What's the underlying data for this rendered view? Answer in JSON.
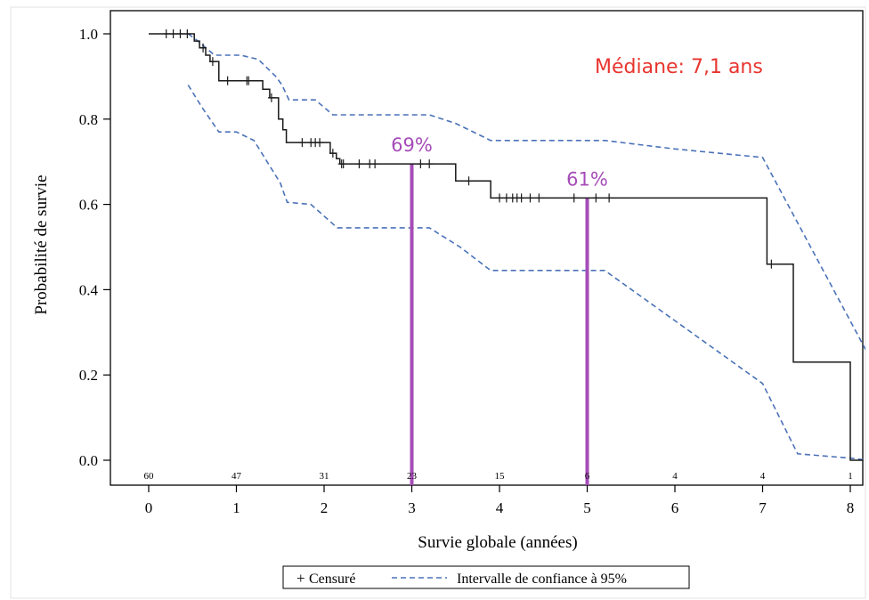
{
  "colors": {
    "survival": "#1a1a1a",
    "ci": "#4a72b8",
    "marker": "#a64cb8",
    "median_text": "#e8352f",
    "axis": "#000000"
  },
  "chart_data": {
    "type": "line",
    "xlabel": "Survie globale (années)",
    "ylabel": "Probabilité de survie",
    "xlim": [
      0,
      8
    ],
    "ylim": [
      0.0,
      1.0
    ],
    "x_ticks": [
      "0",
      "1",
      "2",
      "3",
      "4",
      "5",
      "6",
      "7",
      "8"
    ],
    "y_ticks": [
      "0.0",
      "0.2",
      "0.4",
      "0.6",
      "0.8",
      "1.0"
    ],
    "legend_position": "bottom",
    "legend": {
      "censored_symbol": "+",
      "censored_label": "Censuré",
      "ci_label": "Intervalle de confiance à 95%"
    },
    "annotation": "Médiane: 7,1 ans",
    "at_risk": [
      {
        "x": 0,
        "n": "60"
      },
      {
        "x": 1,
        "n": "47"
      },
      {
        "x": 2,
        "n": "31"
      },
      {
        "x": 3,
        "n": "23"
      },
      {
        "x": 4,
        "n": "15"
      },
      {
        "x": 5,
        "n": "6"
      },
      {
        "x": 6,
        "n": "4"
      },
      {
        "x": 7,
        "n": "4"
      },
      {
        "x": 8,
        "n": "1"
      }
    ],
    "markers": [
      {
        "x": 3,
        "y": 0.695,
        "label": "69%"
      },
      {
        "x": 5,
        "y": 0.615,
        "label": "61%"
      }
    ],
    "series": [
      {
        "kind": "survival",
        "steps": [
          [
            0,
            1.0
          ],
          [
            0.52,
            1.0
          ],
          [
            0.52,
            0.983
          ],
          [
            0.58,
            0.983
          ],
          [
            0.58,
            0.967
          ],
          [
            0.65,
            0.967
          ],
          [
            0.65,
            0.95
          ],
          [
            0.7,
            0.95
          ],
          [
            0.7,
            0.935
          ],
          [
            0.8,
            0.935
          ],
          [
            0.8,
            0.89
          ],
          [
            1.3,
            0.89
          ],
          [
            1.3,
            0.87
          ],
          [
            1.38,
            0.87
          ],
          [
            1.38,
            0.85
          ],
          [
            1.48,
            0.85
          ],
          [
            1.48,
            0.8
          ],
          [
            1.53,
            0.8
          ],
          [
            1.53,
            0.775
          ],
          [
            1.57,
            0.775
          ],
          [
            1.57,
            0.745
          ],
          [
            2.07,
            0.745
          ],
          [
            2.07,
            0.72
          ],
          [
            2.14,
            0.72
          ],
          [
            2.14,
            0.707
          ],
          [
            2.18,
            0.707
          ],
          [
            2.18,
            0.695
          ],
          [
            3.5,
            0.695
          ],
          [
            3.5,
            0.655
          ],
          [
            3.9,
            0.655
          ],
          [
            3.9,
            0.615
          ],
          [
            7.05,
            0.615
          ],
          [
            7.05,
            0.46
          ],
          [
            7.35,
            0.46
          ],
          [
            7.35,
            0.23
          ],
          [
            8.0,
            0.23
          ],
          [
            8.0,
            0.0
          ],
          [
            8.15,
            0.0
          ]
        ],
        "censored": [
          [
            0.2,
            1.0
          ],
          [
            0.28,
            1.0
          ],
          [
            0.36,
            1.0
          ],
          [
            0.44,
            1.0
          ],
          [
            0.62,
            0.967
          ],
          [
            0.73,
            0.935
          ],
          [
            0.9,
            0.89
          ],
          [
            1.12,
            0.89
          ],
          [
            1.14,
            0.89
          ],
          [
            1.4,
            0.85
          ],
          [
            1.75,
            0.745
          ],
          [
            1.85,
            0.745
          ],
          [
            1.9,
            0.745
          ],
          [
            1.95,
            0.745
          ],
          [
            2.1,
            0.72
          ],
          [
            2.2,
            0.695
          ],
          [
            2.22,
            0.695
          ],
          [
            2.4,
            0.695
          ],
          [
            2.52,
            0.695
          ],
          [
            2.58,
            0.695
          ],
          [
            3.1,
            0.695
          ],
          [
            3.2,
            0.695
          ],
          [
            3.65,
            0.655
          ],
          [
            4.0,
            0.615
          ],
          [
            4.08,
            0.615
          ],
          [
            4.15,
            0.615
          ],
          [
            4.2,
            0.615
          ],
          [
            4.25,
            0.615
          ],
          [
            4.35,
            0.615
          ],
          [
            4.45,
            0.615
          ],
          [
            4.85,
            0.615
          ],
          [
            5.1,
            0.615
          ],
          [
            5.25,
            0.615
          ],
          [
            7.1,
            0.46
          ]
        ]
      },
      {
        "kind": "ci_upper",
        "points": [
          [
            0.45,
            1.0
          ],
          [
            0.55,
            0.985
          ],
          [
            0.75,
            0.95
          ],
          [
            1.05,
            0.95
          ],
          [
            1.25,
            0.94
          ],
          [
            1.45,
            0.9
          ],
          [
            1.52,
            0.88
          ],
          [
            1.6,
            0.845
          ],
          [
            1.9,
            0.845
          ],
          [
            2.1,
            0.81
          ],
          [
            3.2,
            0.81
          ],
          [
            3.5,
            0.79
          ],
          [
            3.9,
            0.75
          ],
          [
            5.2,
            0.75
          ],
          [
            6.0,
            0.73
          ],
          [
            7.0,
            0.71
          ],
          [
            8.2,
            0.25
          ]
        ]
      },
      {
        "kind": "ci_lower",
        "points": [
          [
            0.45,
            0.88
          ],
          [
            0.6,
            0.83
          ],
          [
            0.8,
            0.77
          ],
          [
            1.0,
            0.77
          ],
          [
            1.2,
            0.75
          ],
          [
            1.35,
            0.7
          ],
          [
            1.5,
            0.65
          ],
          [
            1.58,
            0.605
          ],
          [
            1.85,
            0.6
          ],
          [
            2.15,
            0.545
          ],
          [
            3.2,
            0.545
          ],
          [
            3.55,
            0.5
          ],
          [
            3.9,
            0.445
          ],
          [
            5.2,
            0.445
          ],
          [
            7.0,
            0.18
          ],
          [
            7.4,
            0.015
          ],
          [
            8.0,
            0.005
          ],
          [
            8.2,
            0.0
          ]
        ]
      }
    ]
  }
}
